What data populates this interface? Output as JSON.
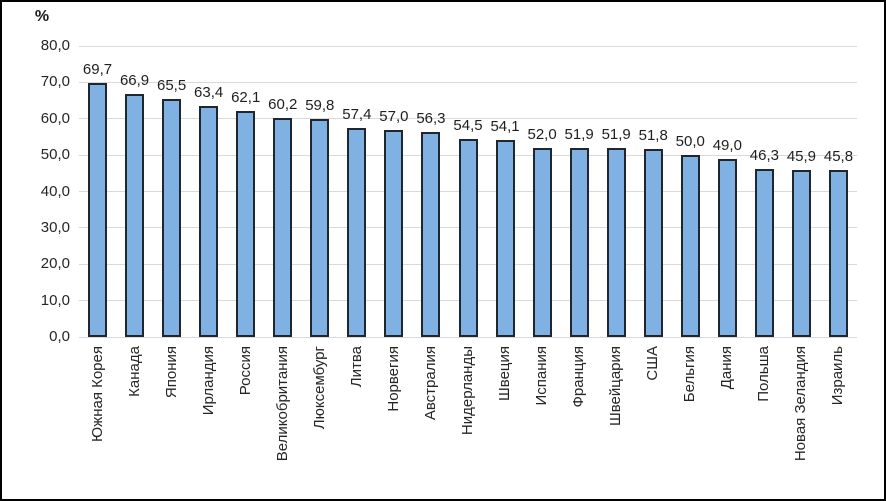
{
  "chart_data": {
    "type": "bar",
    "title": "",
    "y_axis_unit_label": "%",
    "xlabel": "",
    "ylabel": "%",
    "ylim": [
      0,
      80
    ],
    "grid": true,
    "legend_position": "none",
    "categories": [
      "Южная Корея",
      "Канада",
      "Япония",
      "Ирландия",
      "Россия",
      "Великобритания",
      "Люксембург",
      "Литва",
      "Норвегия",
      "Австралия",
      "Нидерланды",
      "Швеция",
      "Испания",
      "Франция",
      "Швейцария",
      "США",
      "Бельгия",
      "Дания",
      "Польша",
      "Новая Зеландия",
      "Израиль"
    ],
    "values": [
      69.7,
      66.9,
      65.5,
      63.4,
      62.1,
      60.2,
      59.8,
      57.4,
      57.0,
      56.3,
      54.5,
      54.1,
      52.0,
      51.9,
      51.9,
      51.8,
      50.0,
      49.0,
      46.3,
      45.9,
      45.8
    ],
    "value_labels": [
      "69,7",
      "66,9",
      "65,5",
      "63,4",
      "62,1",
      "60,2",
      "59,8",
      "57,4",
      "57,0",
      "56,3",
      "54,5",
      "54,1",
      "52,0",
      "51,9",
      "51,9",
      "51,8",
      "50,0",
      "49,0",
      "46,3",
      "45,9",
      "45,8"
    ],
    "y_ticks": [
      "80,0",
      "70,0",
      "60,0",
      "50,0",
      "40,0",
      "30,0",
      "20,0",
      "10,0",
      "0,0"
    ],
    "colors": {
      "bar_fill": "#7fb2e3",
      "bar_border": "#20262e",
      "gridline": "#d9d9d9",
      "text": "#262626",
      "background": "#ffffff",
      "frame_border": "#000000"
    }
  }
}
